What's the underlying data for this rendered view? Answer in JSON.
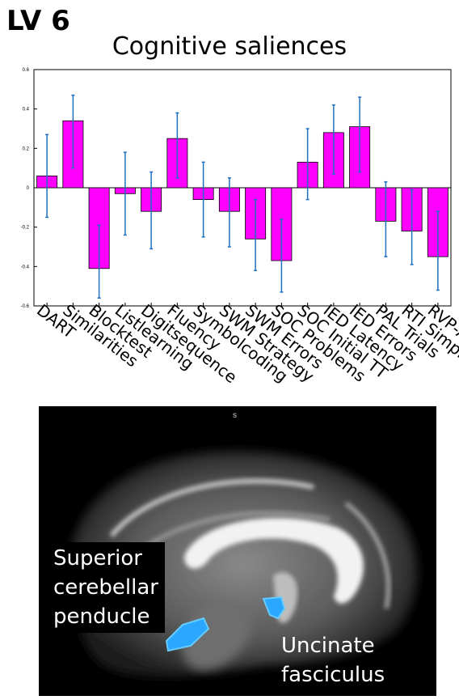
{
  "panel_label": "LV 6",
  "chart_data": {
    "type": "bar",
    "title": "Cognitive saliences",
    "xlabel": "",
    "ylabel": "",
    "ylim": [
      -0.6,
      0.6
    ],
    "yticks": [
      "0.6",
      "0.4",
      "0.2",
      "0",
      "-0.2",
      "-0.4",
      "-0.6"
    ],
    "categories": [
      "DART",
      "Similarities",
      "Blocktest",
      "Listlearning",
      "Digitsequence",
      "Fluency",
      "Symbolcoding",
      "SWM Strategy",
      "SWM Errors",
      "SOC Problems",
      "SOC Initial TT",
      "IED Latency",
      "IED Errors",
      "PAL Trials",
      "RTI Simple",
      "RVP-A'"
    ],
    "values": [
      0.06,
      0.34,
      -0.41,
      -0.03,
      -0.12,
      0.25,
      -0.06,
      -0.12,
      -0.26,
      -0.37,
      0.13,
      0.28,
      0.31,
      -0.17,
      -0.22,
      -0.35
    ],
    "error_low": [
      -0.15,
      0.1,
      -0.56,
      -0.24,
      -0.31,
      0.05,
      -0.25,
      -0.3,
      -0.42,
      -0.53,
      -0.06,
      0.07,
      0.08,
      -0.35,
      -0.39,
      -0.52
    ],
    "error_high": [
      0.27,
      0.47,
      -0.19,
      0.18,
      0.08,
      0.38,
      0.13,
      0.05,
      -0.06,
      -0.16,
      0.3,
      0.42,
      0.46,
      0.03,
      -0.01,
      -0.12
    ],
    "colors": {
      "bar": "#ff00ff",
      "error": "#1f6fc0"
    },
    "grid": false
  },
  "brain_image": {
    "s_label": "s",
    "label_scp": [
      "Superior",
      "cerebellar",
      "penducle"
    ],
    "label_uf": [
      "Uncinate",
      "fasciculus"
    ]
  }
}
